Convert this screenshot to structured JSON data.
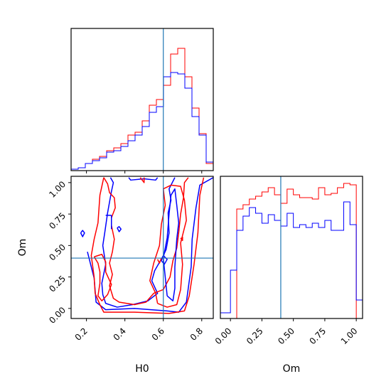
{
  "chart_data": {
    "type": "corner",
    "colors": {
      "red": "#ff0000",
      "blue": "#0000ff",
      "truth": "#1f77b4"
    },
    "truth": {
      "H0": 0.6,
      "Om": 0.4
    },
    "h0_hist": {
      "type": "histogram",
      "xlim": [
        0.12,
        0.86
      ],
      "ylim": [
        0,
        1.0
      ],
      "edges": [
        0.12,
        0.157,
        0.194,
        0.231,
        0.268,
        0.305,
        0.342,
        0.379,
        0.416,
        0.453,
        0.49,
        0.527,
        0.564,
        0.601,
        0.638,
        0.675,
        0.712,
        0.749,
        0.786,
        0.823,
        0.86
      ],
      "xticks": [
        0.2,
        0.4,
        0.6,
        0.8
      ],
      "series": [
        {
          "color": "red",
          "values": [
            0.01,
            0.02,
            0.05,
            0.08,
            0.1,
            0.14,
            0.16,
            0.19,
            0.25,
            0.27,
            0.35,
            0.46,
            0.5,
            0.6,
            0.82,
            0.86,
            0.66,
            0.44,
            0.26,
            0.05
          ]
        },
        {
          "color": "blue",
          "values": [
            0.01,
            0.02,
            0.05,
            0.07,
            0.09,
            0.13,
            0.14,
            0.17,
            0.21,
            0.25,
            0.31,
            0.41,
            0.45,
            0.66,
            0.69,
            0.68,
            0.58,
            0.38,
            0.25,
            0.06
          ]
        }
      ]
    },
    "om_hist": {
      "type": "histogram",
      "xlabel": "Om",
      "xlim": [
        -0.08,
        1.05
      ],
      "ylim": [
        0,
        1.0
      ],
      "edges": [
        -0.08,
        0.0,
        0.05,
        0.1,
        0.15,
        0.2,
        0.25,
        0.3,
        0.35,
        0.4,
        0.45,
        0.5,
        0.55,
        0.6,
        0.65,
        0.7,
        0.75,
        0.8,
        0.85,
        0.9,
        0.95,
        1.0,
        1.05
      ],
      "xticks": [
        0.0,
        0.25,
        0.5,
        0.75,
        1.0
      ],
      "xtick_labels": [
        "0.00",
        "0.25",
        "0.50",
        "0.75",
        "1.00"
      ],
      "series": [
        {
          "color": "red",
          "values": [
            0.0,
            0.0,
            0.77,
            0.8,
            0.84,
            0.86,
            0.89,
            0.92,
            0.87,
            0.81,
            0.91,
            0.87,
            0.85,
            0.85,
            0.84,
            0.92,
            0.87,
            0.88,
            0.92,
            0.95,
            0.94,
            0.0
          ]
        },
        {
          "color": "blue",
          "values": [
            0.04,
            0.34,
            0.62,
            0.72,
            0.78,
            0.74,
            0.67,
            0.73,
            0.69,
            0.65,
            0.74,
            0.64,
            0.66,
            0.64,
            0.67,
            0.64,
            0.69,
            0.62,
            0.62,
            0.82,
            0.66,
            0.13
          ]
        }
      ]
    },
    "contour": {
      "type": "contour",
      "xlabel": "H0",
      "ylabel": "Om",
      "xlim": [
        0.12,
        0.86
      ],
      "ylim": [
        -0.08,
        1.05
      ],
      "xticks": [
        0.2,
        0.4,
        0.6,
        0.8
      ],
      "yticks": [
        0.0,
        0.25,
        0.5,
        0.75,
        1.0
      ],
      "ytick_labels": [
        "0.00",
        "0.25",
        "0.50",
        "0.75",
        "1.00"
      ],
      "lines": [
        {
          "color": "blue",
          "points": [
            [
              0.205,
              0.45
            ],
            [
              0.24,
              0.24
            ],
            [
              0.25,
              0.05
            ],
            [
              0.3,
              -0.01
            ],
            [
              0.45,
              0.0
            ],
            [
              0.62,
              -0.02
            ],
            [
              0.68,
              -0.03
            ],
            [
              0.72,
              0.05
            ],
            [
              0.745,
              0.33
            ],
            [
              0.75,
              0.55
            ],
            [
              0.77,
              0.8
            ],
            [
              0.79,
              0.98
            ],
            [
              0.86,
              1.04
            ]
          ]
        },
        {
          "color": "red",
          "points": [
            [
              0.29,
              1.04
            ],
            [
              0.27,
              0.9
            ],
            [
              0.26,
              0.68
            ],
            [
              0.24,
              0.55
            ],
            [
              0.225,
              0.42
            ],
            [
              0.24,
              0.25
            ],
            [
              0.245,
              0.12
            ],
            [
              0.27,
              0.03
            ],
            [
              0.29,
              -0.03
            ],
            [
              0.45,
              -0.03
            ],
            [
              0.63,
              -0.04
            ],
            [
              0.71,
              -0.02
            ],
            [
              0.735,
              0.1
            ],
            [
              0.76,
              0.35
            ],
            [
              0.78,
              0.6
            ],
            [
              0.79,
              0.9
            ],
            [
              0.81,
              1.04
            ]
          ]
        },
        {
          "color": "blue",
          "points": [
            [
              0.325,
              1.04
            ],
            [
              0.34,
              1.0
            ],
            [
              0.33,
              0.93
            ],
            [
              0.31,
              0.76
            ],
            [
              0.295,
              0.6
            ],
            [
              0.285,
              0.5
            ],
            [
              0.3,
              0.35
            ],
            [
              0.28,
              0.2
            ],
            [
              0.285,
              0.11
            ],
            [
              0.3,
              0.04
            ],
            [
              0.36,
              0.01
            ],
            [
              0.44,
              0.03
            ],
            [
              0.52,
              0.06
            ],
            [
              0.57,
              0.12
            ],
            [
              0.54,
              0.22
            ],
            [
              0.555,
              0.3
            ],
            [
              0.585,
              0.38
            ],
            [
              0.6,
              0.42
            ],
            [
              0.615,
              0.47
            ],
            [
              0.63,
              0.6
            ],
            [
              0.625,
              0.76
            ],
            [
              0.64,
              0.86
            ],
            [
              0.63,
              0.95
            ],
            [
              0.66,
              1.04
            ]
          ]
        },
        {
          "color": "blue",
          "points": [
            [
              0.42,
              1.04
            ],
            [
              0.43,
              1.02
            ],
            [
              0.5,
              1.03
            ],
            [
              0.56,
              1.02
            ],
            [
              0.57,
              1.04
            ]
          ]
        },
        {
          "color": "red",
          "points": [
            [
              0.29,
              1.04
            ],
            [
              0.31,
              0.99
            ],
            [
              0.32,
              0.92
            ],
            [
              0.345,
              0.88
            ],
            [
              0.35,
              0.8
            ],
            [
              0.33,
              0.72
            ],
            [
              0.33,
              0.66
            ],
            [
              0.345,
              0.55
            ],
            [
              0.335,
              0.45
            ],
            [
              0.32,
              0.36
            ],
            [
              0.335,
              0.27
            ],
            [
              0.32,
              0.18
            ],
            [
              0.34,
              0.08
            ],
            [
              0.37,
              0.05
            ],
            [
              0.45,
              0.03
            ],
            [
              0.51,
              0.05
            ],
            [
              0.55,
              0.12
            ],
            [
              0.6,
              0.15
            ],
            [
              0.635,
              0.25
            ],
            [
              0.65,
              0.38
            ],
            [
              0.67,
              0.48
            ],
            [
              0.68,
              0.6
            ],
            [
              0.69,
              0.75
            ],
            [
              0.705,
              0.88
            ],
            [
              0.71,
              1.0
            ],
            [
              0.73,
              1.04
            ]
          ]
        },
        {
          "color": "red",
          "points": [
            [
              0.5,
              1.04
            ],
            [
              0.5,
              1.0
            ],
            [
              0.48,
              1.04
            ]
          ]
        },
        {
          "color": "red",
          "points": [
            [
              0.24,
              0.41
            ],
            [
              0.26,
              0.36
            ],
            [
              0.27,
              0.29
            ],
            [
              0.27,
              0.2
            ],
            [
              0.26,
              0.1
            ],
            [
              0.28,
              0.06
            ],
            [
              0.31,
              0.11
            ],
            [
              0.33,
              0.19
            ],
            [
              0.3,
              0.29
            ],
            [
              0.3,
              0.37
            ],
            [
              0.28,
              0.43
            ],
            [
              0.24,
              0.41
            ]
          ]
        },
        {
          "color": "red",
          "points": [
            [
              0.57,
              0.04
            ],
            [
              0.62,
              0.01
            ],
            [
              0.67,
              0.03
            ],
            [
              0.69,
              0.15
            ],
            [
              0.7,
              0.35
            ],
            [
              0.69,
              0.52
            ],
            [
              0.72,
              0.7
            ],
            [
              0.71,
              0.86
            ],
            [
              0.69,
              0.97
            ],
            [
              0.64,
              0.98
            ],
            [
              0.6,
              0.95
            ],
            [
              0.61,
              0.82
            ],
            [
              0.59,
              0.67
            ],
            [
              0.58,
              0.5
            ],
            [
              0.55,
              0.36
            ],
            [
              0.53,
              0.22
            ],
            [
              0.56,
              0.12
            ],
            [
              0.57,
              0.04
            ]
          ]
        },
        {
          "color": "blue",
          "points": [
            [
              0.62,
              0.1
            ],
            [
              0.65,
              0.06
            ],
            [
              0.66,
              0.16
            ],
            [
              0.66,
              0.33
            ],
            [
              0.67,
              0.55
            ],
            [
              0.68,
              0.68
            ],
            [
              0.67,
              0.82
            ],
            [
              0.66,
              0.95
            ],
            [
              0.64,
              0.9
            ],
            [
              0.63,
              0.75
            ],
            [
              0.62,
              0.56
            ],
            [
              0.6,
              0.4
            ],
            [
              0.61,
              0.25
            ],
            [
              0.62,
              0.1
            ]
          ]
        },
        {
          "color": "blue",
          "points": [
            [
              0.17,
              0.6
            ],
            [
              0.18,
              0.57
            ],
            [
              0.19,
              0.6
            ],
            [
              0.18,
              0.62
            ],
            [
              0.17,
              0.6
            ]
          ]
        },
        {
          "color": "blue",
          "points": [
            [
              0.36,
              0.64
            ],
            [
              0.37,
              0.61
            ],
            [
              0.38,
              0.63
            ],
            [
              0.37,
              0.65
            ],
            [
              0.36,
              0.64
            ]
          ]
        },
        {
          "color": "blue",
          "points": [
            [
              0.3,
              0.74
            ],
            [
              0.33,
              0.74
            ]
          ]
        },
        {
          "color": "blue",
          "points": [
            [
              0.33,
              0.74
            ],
            [
              0.33,
              0.63
            ]
          ]
        },
        {
          "color": "red",
          "points": [
            [
              0.69,
              0.56
            ],
            [
              0.7,
              0.54
            ],
            [
              0.7,
              0.57
            ]
          ]
        },
        {
          "color": "blue",
          "points": [
            [
              0.59,
              0.38
            ],
            [
              0.605,
              0.35
            ],
            [
              0.62,
              0.39
            ],
            [
              0.6,
              0.42
            ],
            [
              0.59,
              0.38
            ]
          ]
        },
        {
          "color": "red",
          "points": [
            [
              0.57,
              0.39
            ],
            [
              0.58,
              0.36
            ],
            [
              0.59,
              0.4
            ]
          ]
        }
      ]
    }
  }
}
